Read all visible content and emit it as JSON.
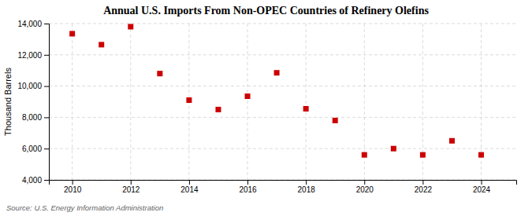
{
  "chart_data": {
    "type": "scatter",
    "title": "Annual U.S. Imports From Non-OPEC Countries of Refinery Olefins",
    "y_label": "Thousand Barrels",
    "annotations": [
      "Source: U.S. Energy Information Administration"
    ],
    "x": [
      2010,
      2011,
      2012,
      2013,
      2014,
      2015,
      2016,
      2017,
      2018,
      2019,
      2020,
      2021,
      2022,
      2023,
      2024
    ],
    "values": [
      13350,
      12650,
      13800,
      10800,
      9100,
      8500,
      9350,
      10850,
      8550,
      7800,
      5600,
      6000,
      5600,
      6500,
      5600
    ],
    "color": "#cc0000",
    "marker": "square",
    "xlim": [
      2009.2,
      2025.2
    ],
    "xticks": [
      2010,
      2012,
      2014,
      2016,
      2018,
      2020,
      2022,
      2024
    ],
    "ylim": [
      4000,
      14000
    ],
    "yticks": [
      {
        "value": 4000,
        "label": "4,000"
      },
      {
        "value": 6000,
        "label": "6,000"
      },
      {
        "value": 8000,
        "label": "8,000"
      },
      {
        "value": 10000,
        "label": "10,000"
      },
      {
        "value": 12000,
        "label": "12,000"
      },
      {
        "value": 14000,
        "label": "14,000"
      }
    ],
    "grid": true
  }
}
